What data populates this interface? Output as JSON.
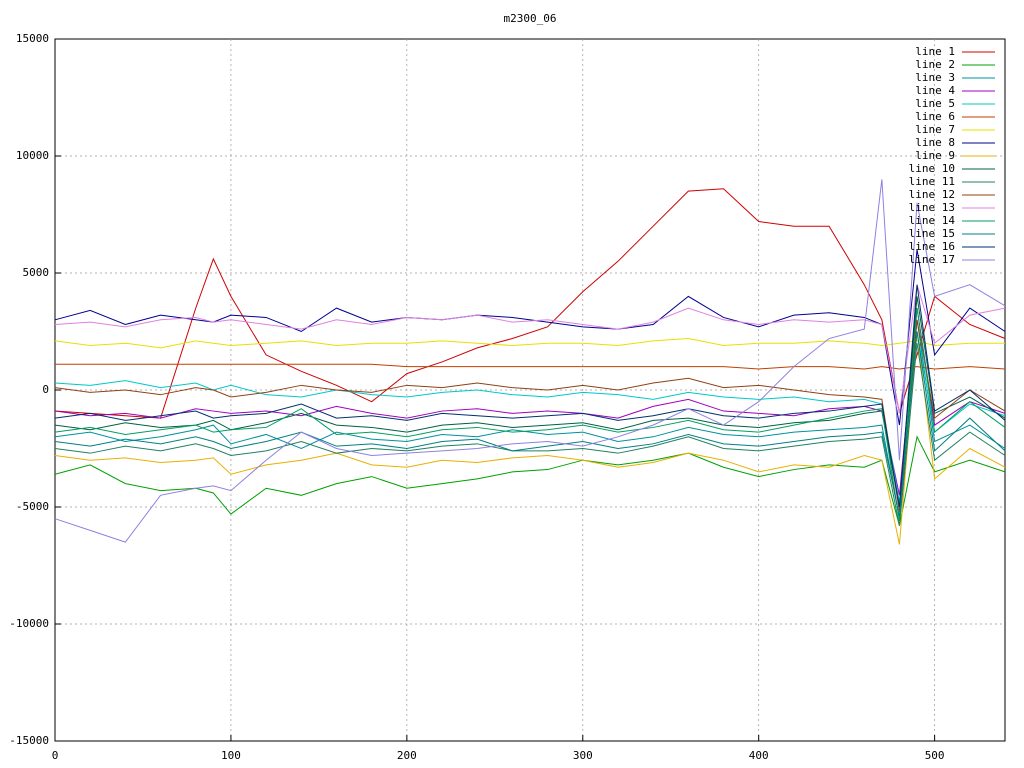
{
  "chart_data": {
    "type": "line",
    "title": "m2300_06",
    "x": [
      0,
      20,
      40,
      60,
      80,
      90,
      100,
      120,
      140,
      160,
      180,
      200,
      220,
      240,
      260,
      280,
      300,
      320,
      340,
      360,
      380,
      400,
      420,
      440,
      460,
      470,
      480,
      490,
      500,
      520,
      540
    ],
    "xlim": [
      0,
      540
    ],
    "xticks": [
      0,
      100,
      200,
      300,
      400,
      500
    ],
    "ylim": [
      -15000,
      15000
    ],
    "yticks": [
      -15000,
      -10000,
      -5000,
      0,
      5000,
      10000,
      15000
    ],
    "grid": true,
    "legend": "upper right",
    "series": [
      {
        "name": "line 1",
        "color": "#d00000",
        "values": [
          -900,
          -1000,
          -1100,
          -1200,
          3500,
          5600,
          4000,
          1500,
          800,
          200,
          -500,
          700,
          1200,
          1800,
          2200,
          2700,
          4200,
          5500,
          7000,
          8500,
          8600,
          7200,
          7000,
          7000,
          4500,
          3000,
          -1000,
          1500,
          4000,
          2800,
          2200
        ]
      },
      {
        "name": "line 2",
        "color": "#00a000",
        "values": [
          -3600,
          -3200,
          -4000,
          -4300,
          -4200,
          -4400,
          -5300,
          -4200,
          -4500,
          -4000,
          -3700,
          -4200,
          -4000,
          -3800,
          -3500,
          -3400,
          -3000,
          -3200,
          -3000,
          -2700,
          -3300,
          -3700,
          -3400,
          -3200,
          -3300,
          -3000,
          -5800,
          -2000,
          -3500,
          -3000,
          -3500
        ]
      },
      {
        "name": "line 3",
        "color": "#0090a0",
        "values": [
          -2000,
          -1800,
          -2200,
          -2000,
          -1700,
          -1500,
          -2300,
          -1900,
          -2500,
          -1800,
          -2100,
          -2200,
          -1900,
          -2000,
          -1700,
          -1900,
          -1800,
          -2200,
          -2000,
          -1600,
          -1900,
          -2000,
          -1800,
          -1700,
          -1600,
          -1500,
          -5500,
          3000,
          -2200,
          -1500,
          -2500
        ]
      },
      {
        "name": "line 4",
        "color": "#a000c0",
        "values": [
          -900,
          -1100,
          -1000,
          -1200,
          -800,
          -900,
          -1000,
          -900,
          -1100,
          -700,
          -1000,
          -1200,
          -900,
          -800,
          -1000,
          -900,
          -1000,
          -1200,
          -700,
          -400,
          -900,
          -1000,
          -1100,
          -800,
          -700,
          -900,
          -4500,
          3500,
          -1500,
          -500,
          -1000
        ]
      },
      {
        "name": "line 5",
        "color": "#00c8c8",
        "values": [
          300,
          200,
          400,
          100,
          300,
          0,
          200,
          -200,
          -300,
          0,
          -200,
          -300,
          -100,
          0,
          -200,
          -300,
          -100,
          -200,
          -400,
          -100,
          -300,
          -400,
          -300,
          -500,
          -400,
          -600,
          -4800,
          2500,
          -1800,
          -600,
          -1100
        ]
      },
      {
        "name": "line 6",
        "color": "#c04000",
        "values": [
          1100,
          1100,
          1100,
          1100,
          1100,
          1100,
          1100,
          1100,
          1100,
          1100,
          1100,
          1000,
          1000,
          1000,
          1000,
          1000,
          1000,
          1000,
          1000,
          1000,
          1000,
          900,
          1000,
          1000,
          900,
          1000,
          900,
          1000,
          900,
          1000,
          900
        ]
      },
      {
        "name": "line 7",
        "color": "#e8e000",
        "values": [
          2100,
          1900,
          2000,
          1800,
          2100,
          2000,
          1900,
          2000,
          2100,
          1900,
          2000,
          2000,
          2100,
          2000,
          1900,
          2000,
          2000,
          1900,
          2100,
          2200,
          1900,
          2000,
          2000,
          2100,
          2000,
          1900,
          2000,
          2100,
          1900,
          2000,
          2000
        ]
      },
      {
        "name": "line 8",
        "color": "#000090",
        "values": [
          3000,
          3400,
          2800,
          3200,
          3000,
          2900,
          3200,
          3100,
          2500,
          3500,
          2900,
          3100,
          3000,
          3200,
          3100,
          2900,
          2700,
          2600,
          2800,
          4000,
          3100,
          2700,
          3200,
          3300,
          3100,
          2800,
          -1500,
          6000,
          1500,
          3500,
          2500
        ]
      },
      {
        "name": "line 9",
        "color": "#e8b000",
        "values": [
          -2800,
          -3000,
          -2900,
          -3100,
          -3000,
          -2900,
          -3600,
          -3200,
          -3000,
          -2700,
          -3200,
          -3300,
          -3000,
          -3100,
          -2900,
          -2800,
          -3000,
          -3300,
          -3100,
          -2700,
          -3000,
          -3500,
          -3200,
          -3300,
          -2800,
          -3000,
          -6600,
          2500,
          -3800,
          -2500,
          -3300
        ]
      },
      {
        "name": "line 10",
        "color": "#006040",
        "values": [
          -1500,
          -1700,
          -1400,
          -1600,
          -1500,
          -1300,
          -1700,
          -1400,
          -1000,
          -1500,
          -1600,
          -1800,
          -1500,
          -1400,
          -1600,
          -1500,
          -1400,
          -1700,
          -1300,
          -1200,
          -1500,
          -1600,
          -1400,
          -1300,
          -1000,
          -900,
          -5000,
          4000,
          -1000,
          -300,
          -1200
        ]
      },
      {
        "name": "line 11",
        "color": "#208060",
        "values": [
          -2500,
          -2700,
          -2400,
          -2600,
          -2300,
          -2500,
          -2800,
          -2600,
          -2200,
          -2700,
          -2500,
          -2600,
          -2400,
          -2300,
          -2600,
          -2600,
          -2500,
          -2700,
          -2400,
          -2000,
          -2500,
          -2600,
          -2400,
          -2200,
          -2100,
          -2000,
          -5800,
          2000,
          -3000,
          -1800,
          -2800
        ]
      },
      {
        "name": "line 12",
        "color": "#904010",
        "values": [
          100,
          -100,
          0,
          -200,
          100,
          0,
          -300,
          -100,
          200,
          0,
          -100,
          200,
          100,
          300,
          100,
          0,
          200,
          0,
          300,
          500,
          100,
          200,
          0,
          -200,
          -300,
          -400,
          -5200,
          3000,
          -1200,
          0,
          -900
        ]
      },
      {
        "name": "line 13",
        "color": "#e080e0",
        "values": [
          2800,
          2900,
          2700,
          3000,
          3100,
          2900,
          3000,
          2800,
          2600,
          3000,
          2800,
          3100,
          3000,
          3200,
          2900,
          3000,
          2800,
          2600,
          2900,
          3500,
          3000,
          2800,
          3000,
          2900,
          3000,
          2800,
          -1000,
          4500,
          2000,
          3200,
          3500
        ]
      },
      {
        "name": "line 14",
        "color": "#00a060",
        "values": [
          -1800,
          -1600,
          -1900,
          -1700,
          -1500,
          -1800,
          -1700,
          -1600,
          -800,
          -1900,
          -1800,
          -2000,
          -1700,
          -1600,
          -1800,
          -1700,
          -1500,
          -1800,
          -1600,
          -1300,
          -1700,
          -1800,
          -1500,
          -1200,
          -900,
          -800,
          -5600,
          3500,
          -1800,
          -500,
          -1600
        ]
      },
      {
        "name": "line 15",
        "color": "#008080",
        "values": [
          -2200,
          -2400,
          -2100,
          -2300,
          -2000,
          -2200,
          -2500,
          -2200,
          -1800,
          -2400,
          -2300,
          -2500,
          -2200,
          -2100,
          -2600,
          -2400,
          -2200,
          -2500,
          -2300,
          -1900,
          -2300,
          -2400,
          -2200,
          -2000,
          -1900,
          -1800,
          -5400,
          2500,
          -2600,
          -1200,
          -2600
        ]
      },
      {
        "name": "line 16",
        "color": "#003070",
        "values": [
          -1200,
          -1000,
          -1300,
          -1100,
          -900,
          -1200,
          -1100,
          -1000,
          -600,
          -1200,
          -1100,
          -1300,
          -1000,
          -1100,
          -1200,
          -1100,
          -1000,
          -1300,
          -1100,
          -800,
          -1100,
          -1200,
          -1000,
          -900,
          -700,
          -600,
          -5000,
          4500,
          -900,
          0,
          -1300
        ]
      },
      {
        "name": "line 17",
        "color": "#9080e0",
        "values": [
          -5500,
          -6000,
          -6500,
          -4500,
          -4200,
          -4100,
          -4300,
          -3000,
          -1800,
          -2500,
          -2800,
          -2700,
          -2600,
          -2500,
          -2300,
          -2200,
          -2400,
          -2000,
          -1500,
          -800,
          -1500,
          -500,
          1000,
          2200,
          2600,
          9000,
          -3000,
          8000,
          4000,
          4500,
          3600
        ]
      }
    ]
  }
}
